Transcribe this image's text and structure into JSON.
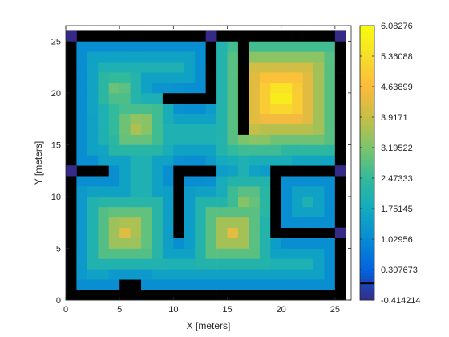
{
  "chart_data": {
    "type": "heatmap",
    "title": "",
    "xlabel": "X [meters]",
    "ylabel": "Y [meters]",
    "xlim": [
      0,
      26.5
    ],
    "ylim": [
      0,
      26.5
    ],
    "x_ticks": [
      0,
      5,
      10,
      15,
      20,
      25
    ],
    "y_ticks": [
      0,
      5,
      10,
      15,
      20,
      25
    ],
    "x_tick_labels": [
      "0",
      "5",
      "10",
      "15",
      "20",
      "25"
    ],
    "y_tick_labels": [
      "0",
      "5",
      "10",
      "15",
      "20",
      "25"
    ],
    "grid": false,
    "colormap": "parula",
    "color_range": [
      -0.414214,
      6.08276
    ],
    "colorbar": {
      "location": "right",
      "tick_values": [
        6.08276,
        5.36088,
        4.63899,
        3.9171,
        3.19522,
        2.47333,
        1.75145,
        1.02956,
        0.307673,
        -0.414214
      ],
      "tick_labels": [
        "6.08276",
        "5.36088",
        "4.63899",
        "3.9171",
        "3.19522",
        "2.47333",
        "1.75145",
        "1.02956",
        "0.307673",
        "-0.414214"
      ]
    },
    "grid_size": [
      26,
      26
    ],
    "cell_size": 1,
    "obstacle_value": -1,
    "obstacle_color": "#000000",
    "obstacles": {
      "bottom_wall": {
        "x": [
          0,
          26
        ],
        "y": [
          0,
          1
        ]
      },
      "top_wall": {
        "x": [
          0,
          26
        ],
        "y": [
          25,
          26
        ]
      },
      "left_wall": {
        "x": [
          0,
          1
        ],
        "y": [
          0,
          26
        ]
      },
      "right_wall": {
        "x": [
          25,
          26
        ],
        "y": [
          0,
          26
        ]
      },
      "upper_center_vertical": {
        "x": [
          13,
          14
        ],
        "y": [
          19,
          25
        ]
      },
      "upper_center_horizontal": {
        "x": [
          9,
          14
        ],
        "y": [
          19,
          20
        ]
      },
      "upper_right_vertical": {
        "x": [
          16,
          17
        ],
        "y": [
          16,
          25
        ]
      },
      "left_stub": {
        "x": [
          1,
          4
        ],
        "y": [
          12,
          13
        ]
      },
      "center_vertical": {
        "x": [
          10,
          11
        ],
        "y": [
          6,
          13
        ]
      },
      "center_horizontal": {
        "x": [
          10,
          14
        ],
        "y": [
          12,
          13
        ]
      },
      "right_upper_stub": {
        "x": [
          20,
          25
        ],
        "y": [
          12,
          13
        ]
      },
      "right_center_vertical": {
        "x": [
          19,
          20
        ],
        "y": [
          6,
          13
        ]
      },
      "right_lower_stub": {
        "x": [
          20,
          25
        ],
        "y": [
          6,
          7
        ]
      },
      "bottom_left_vertical": {
        "x": [
          5,
          7
        ],
        "y": [
          1,
          2
        ]
      }
    },
    "hot_spots": [
      {
        "x": 20,
        "y": 19.7,
        "value": 6.08
      },
      {
        "x": 5.6,
        "y": 6.6,
        "value": 4.3
      },
      {
        "x": 15.5,
        "y": 6.5,
        "value": 4.3
      },
      {
        "x": 17.8,
        "y": 16.6,
        "value": 4.1
      },
      {
        "x": 6.7,
        "y": 16.8,
        "value": 3.9
      },
      {
        "x": 4.9,
        "y": 20.3,
        "value": 3.3
      },
      {
        "x": 16.8,
        "y": 9.6,
        "value": 3.5
      }
    ],
    "edge_markers": [
      {
        "x": 0.5,
        "y": 25.5,
        "value": -0.414214
      },
      {
        "x": 13.5,
        "y": 25.5,
        "value": -0.414214
      },
      {
        "x": 25.5,
        "y": 25.5,
        "value": -0.414214
      },
      {
        "x": 0.5,
        "y": 12.5,
        "value": -0.414214
      },
      {
        "x": 25.5,
        "y": 12.5,
        "value": -0.414214
      },
      {
        "x": 25.5,
        "y": 6.5,
        "value": -0.414214
      }
    ]
  }
}
